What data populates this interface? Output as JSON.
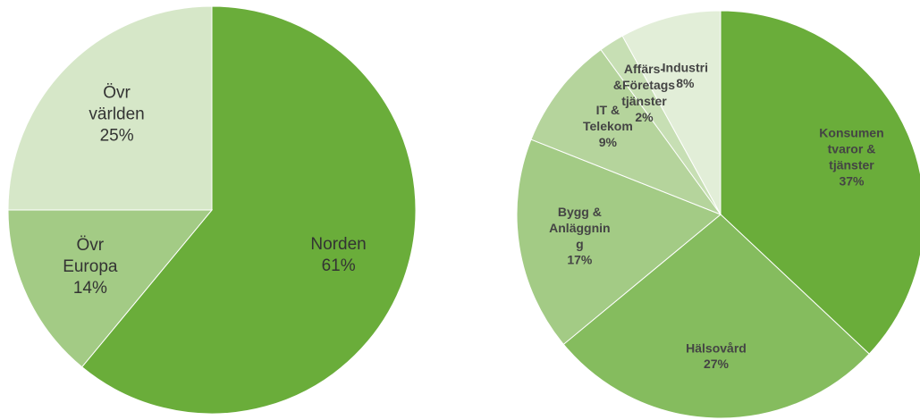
{
  "chart_data": [
    {
      "type": "pie",
      "categories": [
        "Norden",
        "Övr\nEuropa",
        "Övr\nvärlden"
      ],
      "values": [
        61,
        14,
        25
      ],
      "value_labels": [
        "61%",
        "14%",
        "25%"
      ],
      "colors": [
        "#6aad3a",
        "#a3cb85",
        "#d6e7c8"
      ]
    },
    {
      "type": "pie",
      "categories": [
        "Konsumen\ntvaror &\ntjänster",
        "Hälsovård",
        "Bygg &\nAnläggnin\ng",
        "IT &\nTelekom",
        "Affärs-\n&Företags\ntjänster",
        "Industri"
      ],
      "values": [
        37,
        27,
        17,
        9,
        2,
        8
      ],
      "value_labels": [
        "37%",
        "27%",
        "17%",
        "9%",
        "2%",
        "8%"
      ],
      "colors": [
        "#6aad3a",
        "#85bc5e",
        "#a3cb85",
        "#b5d49c",
        "#c7dfb4",
        "#e2eed8"
      ]
    }
  ]
}
